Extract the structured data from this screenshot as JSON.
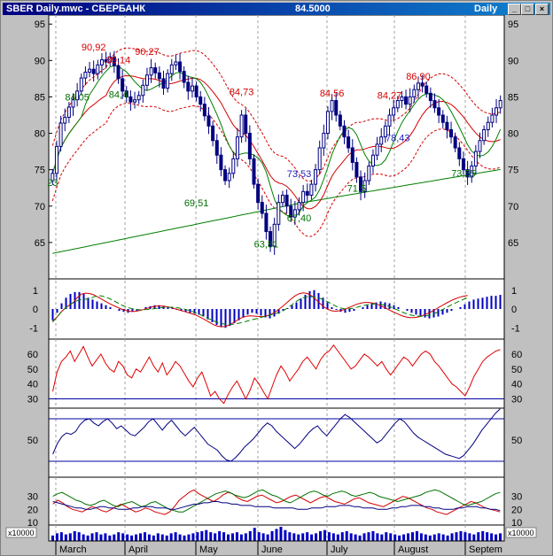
{
  "window": {
    "title": "SBER Daily.mwc - СБЕРБАНК",
    "price": "84.5000",
    "period": "Daily",
    "buttons": [
      "_",
      "□",
      "×"
    ]
  },
  "chart_data": [
    {
      "type": "candlestick",
      "title": "SBER Daily",
      "ylim": [
        60,
        96
      ],
      "y_ticks": [
        "95",
        "90",
        "85",
        "80",
        "75",
        "70",
        "65"
      ],
      "x_labels": [
        "March",
        "April",
        "May",
        "June",
        "July",
        "August",
        "Septem"
      ],
      "annotations": [
        {
          "text": "90,92",
          "x": "late March",
          "y": 90.92,
          "color": "#d40000"
        },
        {
          "text": "89,14",
          "x": "early April",
          "y": 89.14,
          "color": "#d40000"
        },
        {
          "text": "90,27",
          "x": "April",
          "y": 90.27,
          "color": "#d40000"
        },
        {
          "text": "84,73",
          "x": "May",
          "y": 84.73,
          "color": "#d40000"
        },
        {
          "text": "84,56",
          "x": "mid June",
          "y": 84.56,
          "color": "#d40000"
        },
        {
          "text": "84,27",
          "x": "early July",
          "y": 84.27,
          "color": "#d40000"
        },
        {
          "text": "86,90",
          "x": "late July",
          "y": 86.9,
          "color": "#d40000"
        },
        {
          "text": "84,05",
          "x": "March",
          "y": 84.05,
          "color": "#007000"
        },
        {
          "text": "84,4",
          "x": "early April",
          "y": 84.4,
          "color": "#007000"
        },
        {
          "text": "69,51",
          "x": "late April",
          "y": 69.51,
          "color": "#007000"
        },
        {
          "text": "63,81",
          "x": "mid May",
          "y": 63.81,
          "color": "#007000"
        },
        {
          "text": "67,40",
          "x": "late May",
          "y": 67.4,
          "color": "#007000"
        },
        {
          "text": "71,5",
          "x": "late June",
          "y": 71.5,
          "color": "#007000"
        },
        {
          "text": "73,55",
          "x": "late August",
          "y": 73.55,
          "color": "#007000"
        },
        {
          "text": "23",
          "x": "late February",
          "y": 72.3,
          "color": "#007000"
        },
        {
          "text": "73,53",
          "x": "late May",
          "y": 73.53,
          "color": "#2020c0"
        },
        {
          "text": "78,43",
          "x": "July",
          "y": 78.43,
          "color": "#2020c0"
        }
      ],
      "closes": [
        74.5,
        78.2,
        81.4,
        82.2,
        83.6,
        84.6,
        85.8,
        87.6,
        88.4,
        88.8,
        88.2,
        89.4,
        90.1,
        89.8,
        90.5,
        89.3,
        87.5,
        85.8,
        85.0,
        84.3,
        84.6,
        85.2,
        86.6,
        88.0,
        89.0,
        88.3,
        87.5,
        86.2,
        88.2,
        89.4,
        89.8,
        88.5,
        87.0,
        85.8,
        86.5,
        85.0,
        84.0,
        82.4,
        81.0,
        79.0,
        77.0,
        75.0,
        73.5,
        74.5,
        76.5,
        79.5,
        82.5,
        80.0,
        76.5,
        73.0,
        70.5,
        69.0,
        66.5,
        64.5,
        67.5,
        70.5,
        71.5,
        70.0,
        68.5,
        69.5,
        70.5,
        72.0,
        71.5,
        73.0,
        75.0,
        78.0,
        80.0,
        83.0,
        84.5,
        82.5,
        81.0,
        79.5,
        78.0,
        76.0,
        74.0,
        72.0,
        73.5,
        75.5,
        77.0,
        78.5,
        79.5,
        81.0,
        82.5,
        83.5,
        84.5,
        85.0,
        84.0,
        85.0,
        86.0,
        86.9,
        86.5,
        85.5,
        84.5,
        83.5,
        82.5,
        81.5,
        80.5,
        79.5,
        78.0,
        76.5,
        75.0,
        74.0,
        75.5,
        77.5,
        79.0,
        80.5,
        81.5,
        82.5,
        83.5,
        84.5
      ]
    },
    {
      "type": "histogram",
      "title": "MACD",
      "ylim": [
        -1.6,
        1.6
      ],
      "y_ticks": [
        "1",
        "0",
        "-1"
      ],
      "values": [
        -0.6,
        -0.2,
        0.3,
        0.6,
        0.8,
        0.9,
        0.9,
        0.8,
        0.6,
        0.5,
        0.4,
        0.3,
        0.2,
        0.1,
        0.0,
        -0.1,
        -0.15,
        -0.2,
        -0.15,
        -0.1,
        0.0,
        0.1,
        0.15,
        0.2,
        0.2,
        0.15,
        0.1,
        0.05,
        -0.05,
        -0.1,
        -0.15,
        -0.2,
        -0.25,
        -0.3,
        -0.4,
        -0.55,
        -0.7,
        -0.85,
        -0.95,
        -1.0,
        -0.9,
        -0.75,
        -0.6,
        -0.45,
        -0.3,
        -0.2,
        -0.25,
        -0.35,
        -0.45,
        -0.5,
        -0.4,
        -0.25,
        -0.1,
        0.05,
        0.2,
        0.35,
        0.55,
        0.75,
        0.95,
        1.0,
        0.85,
        0.6,
        0.35,
        0.1,
        -0.05,
        -0.15,
        -0.2,
        -0.15,
        -0.1,
        0.0,
        0.1,
        0.2,
        0.3,
        0.35,
        0.4,
        0.35,
        0.3,
        0.2,
        0.1,
        0.0,
        -0.1,
        -0.2,
        -0.3,
        -0.4,
        -0.45,
        -0.5,
        -0.45,
        -0.4,
        -0.3,
        -0.2,
        -0.1,
        0.0,
        0.1,
        0.25,
        0.4,
        0.5,
        0.55,
        0.6,
        0.65,
        0.7,
        0.7,
        0.75
      ]
    },
    {
      "type": "line",
      "title": "RSI",
      "ylim": [
        25,
        70
      ],
      "y_ticks": [
        "60",
        "50",
        "40",
        "30"
      ],
      "levels": [
        30
      ],
      "values": [
        35,
        48,
        55,
        58,
        62,
        55,
        60,
        65,
        58,
        52,
        56,
        60,
        54,
        50,
        48,
        55,
        52,
        46,
        44,
        50,
        48,
        53,
        58,
        52,
        48,
        54,
        46,
        50,
        55,
        52,
        47,
        42,
        38,
        44,
        48,
        40,
        32,
        35,
        30,
        27,
        33,
        38,
        42,
        36,
        30,
        36,
        44,
        40,
        35,
        30,
        38,
        46,
        52,
        48,
        42,
        46,
        50,
        55,
        58,
        54,
        50,
        56,
        60,
        62,
        66,
        62,
        58,
        54,
        50,
        52,
        56,
        60,
        58,
        55,
        52,
        55,
        50,
        46,
        50,
        54,
        58,
        56,
        52,
        56,
        60,
        62,
        60,
        55,
        52,
        48,
        44,
        40,
        38,
        35,
        32,
        38,
        45,
        50,
        55,
        58,
        60,
        62,
        63
      ]
    },
    {
      "type": "line",
      "title": "Stochastic",
      "ylim": [
        10,
        95
      ],
      "y_ticks": [
        "50"
      ],
      "levels": [
        80,
        20
      ],
      "values": [
        30,
        45,
        55,
        60,
        58,
        62,
        72,
        78,
        80,
        74,
        70,
        76,
        80,
        74,
        66,
        70,
        64,
        58,
        56,
        62,
        68,
        76,
        80,
        72,
        64,
        72,
        78,
        70,
        62,
        56,
        62,
        68,
        60,
        52,
        44,
        40,
        36,
        28,
        22,
        20,
        25,
        32,
        40,
        46,
        52,
        60,
        68,
        74,
        70,
        62,
        56,
        50,
        44,
        38,
        44,
        52,
        60,
        66,
        70,
        62,
        56,
        64,
        72,
        80,
        86,
        82,
        76,
        70,
        64,
        58,
        52,
        46,
        50,
        58,
        66,
        74,
        80,
        76,
        68,
        60,
        54,
        50,
        46,
        42,
        38,
        34,
        30,
        28,
        26,
        24,
        28,
        36,
        44,
        54,
        64,
        72,
        80,
        88,
        94
      ]
    },
    {
      "type": "line",
      "title": "DMI / ADX",
      "ylim": [
        12,
        42
      ],
      "y_ticks": [
        "30",
        "20",
        "10"
      ],
      "series": [
        {
          "color": "#d40000",
          "values": [
            24,
            27,
            25,
            22,
            20,
            19,
            18,
            20,
            22,
            21,
            19,
            18,
            20,
            22,
            24,
            22,
            20,
            18,
            19,
            21,
            20,
            18,
            17,
            16,
            18,
            22,
            27,
            30,
            33,
            35,
            32,
            30,
            28,
            26,
            28,
            31,
            33,
            32,
            29,
            27,
            26,
            28,
            30,
            31,
            29,
            27,
            25,
            26,
            28,
            30,
            31,
            29,
            27,
            25,
            27,
            29,
            30,
            28,
            26,
            25,
            24,
            26,
            28,
            29,
            27,
            25,
            24,
            23,
            22,
            24,
            26,
            28,
            30,
            29,
            27,
            25,
            23,
            21,
            20,
            18,
            17,
            16,
            18,
            20,
            22,
            24,
            26,
            25,
            23,
            21,
            20,
            19,
            18
          ]
        },
        {
          "color": "#007000",
          "values": [
            30,
            32,
            33,
            31,
            29,
            27,
            26,
            24,
            23,
            24,
            26,
            27,
            25,
            23,
            22,
            24,
            25,
            26,
            24,
            22,
            23,
            25,
            26,
            24,
            22,
            20,
            19,
            18,
            18,
            20,
            22,
            24,
            26,
            28,
            30,
            32,
            33,
            34,
            33,
            31,
            30,
            29,
            30,
            32,
            34,
            35,
            33,
            31,
            30,
            28,
            26,
            25,
            27,
            29,
            31,
            33,
            34,
            33,
            31,
            30,
            32,
            33,
            34,
            33,
            31,
            30,
            31,
            32,
            33,
            32,
            30,
            29,
            28,
            27,
            26,
            27,
            28,
            29,
            30,
            31,
            33,
            34,
            35,
            34,
            32,
            30,
            28,
            26,
            24,
            23,
            24,
            25,
            26,
            28,
            30,
            32,
            33
          ]
        },
        {
          "color": "#000080",
          "values": [
            26,
            25,
            24,
            23,
            22,
            21,
            21,
            20,
            20,
            21,
            22,
            22,
            21,
            21,
            20,
            20,
            20,
            21,
            21,
            22,
            22,
            22,
            21,
            21,
            21,
            20,
            20,
            21,
            22,
            23,
            24,
            24,
            25,
            25,
            26,
            26,
            25,
            25,
            24,
            24,
            23,
            23,
            23,
            22,
            22,
            22,
            22,
            21,
            21,
            21,
            21,
            21,
            20,
            20,
            20,
            21,
            21,
            21,
            22,
            22,
            22,
            23,
            23,
            23,
            22,
            22,
            21,
            21,
            21,
            20,
            20,
            20,
            21,
            21,
            22,
            22,
            23,
            23,
            23,
            22,
            22,
            21,
            21,
            20,
            20,
            20,
            21,
            21,
            22,
            22,
            22,
            21,
            21,
            20,
            20,
            19
          ]
        }
      ]
    },
    {
      "type": "bar",
      "title": "Volume",
      "unit_label": "x10000",
      "x_labels": [
        "March",
        "April",
        "May",
        "June",
        "July",
        "August",
        "Septem"
      ],
      "values": [
        5,
        7,
        8,
        6,
        7,
        9,
        8,
        6,
        5,
        7,
        8,
        6,
        7,
        5,
        6,
        8,
        7,
        6,
        5,
        6,
        7,
        8,
        6,
        5,
        7,
        6,
        5,
        7,
        8,
        6,
        5,
        6,
        7,
        8,
        9,
        10,
        8,
        7,
        9,
        8,
        6,
        7,
        8,
        6,
        7,
        9,
        12,
        8,
        7,
        6,
        9,
        11,
        13,
        10,
        8,
        7,
        6,
        7,
        8,
        6,
        7,
        9,
        10,
        8,
        7,
        6,
        8,
        9,
        7,
        6,
        5,
        7,
        8,
        9,
        7,
        6,
        8,
        7,
        6,
        5,
        6,
        7,
        8,
        9,
        7,
        6,
        5,
        6,
        7,
        6,
        5,
        7,
        8,
        9,
        8,
        7,
        6,
        8,
        9,
        8,
        7,
        6,
        7
      ]
    }
  ]
}
